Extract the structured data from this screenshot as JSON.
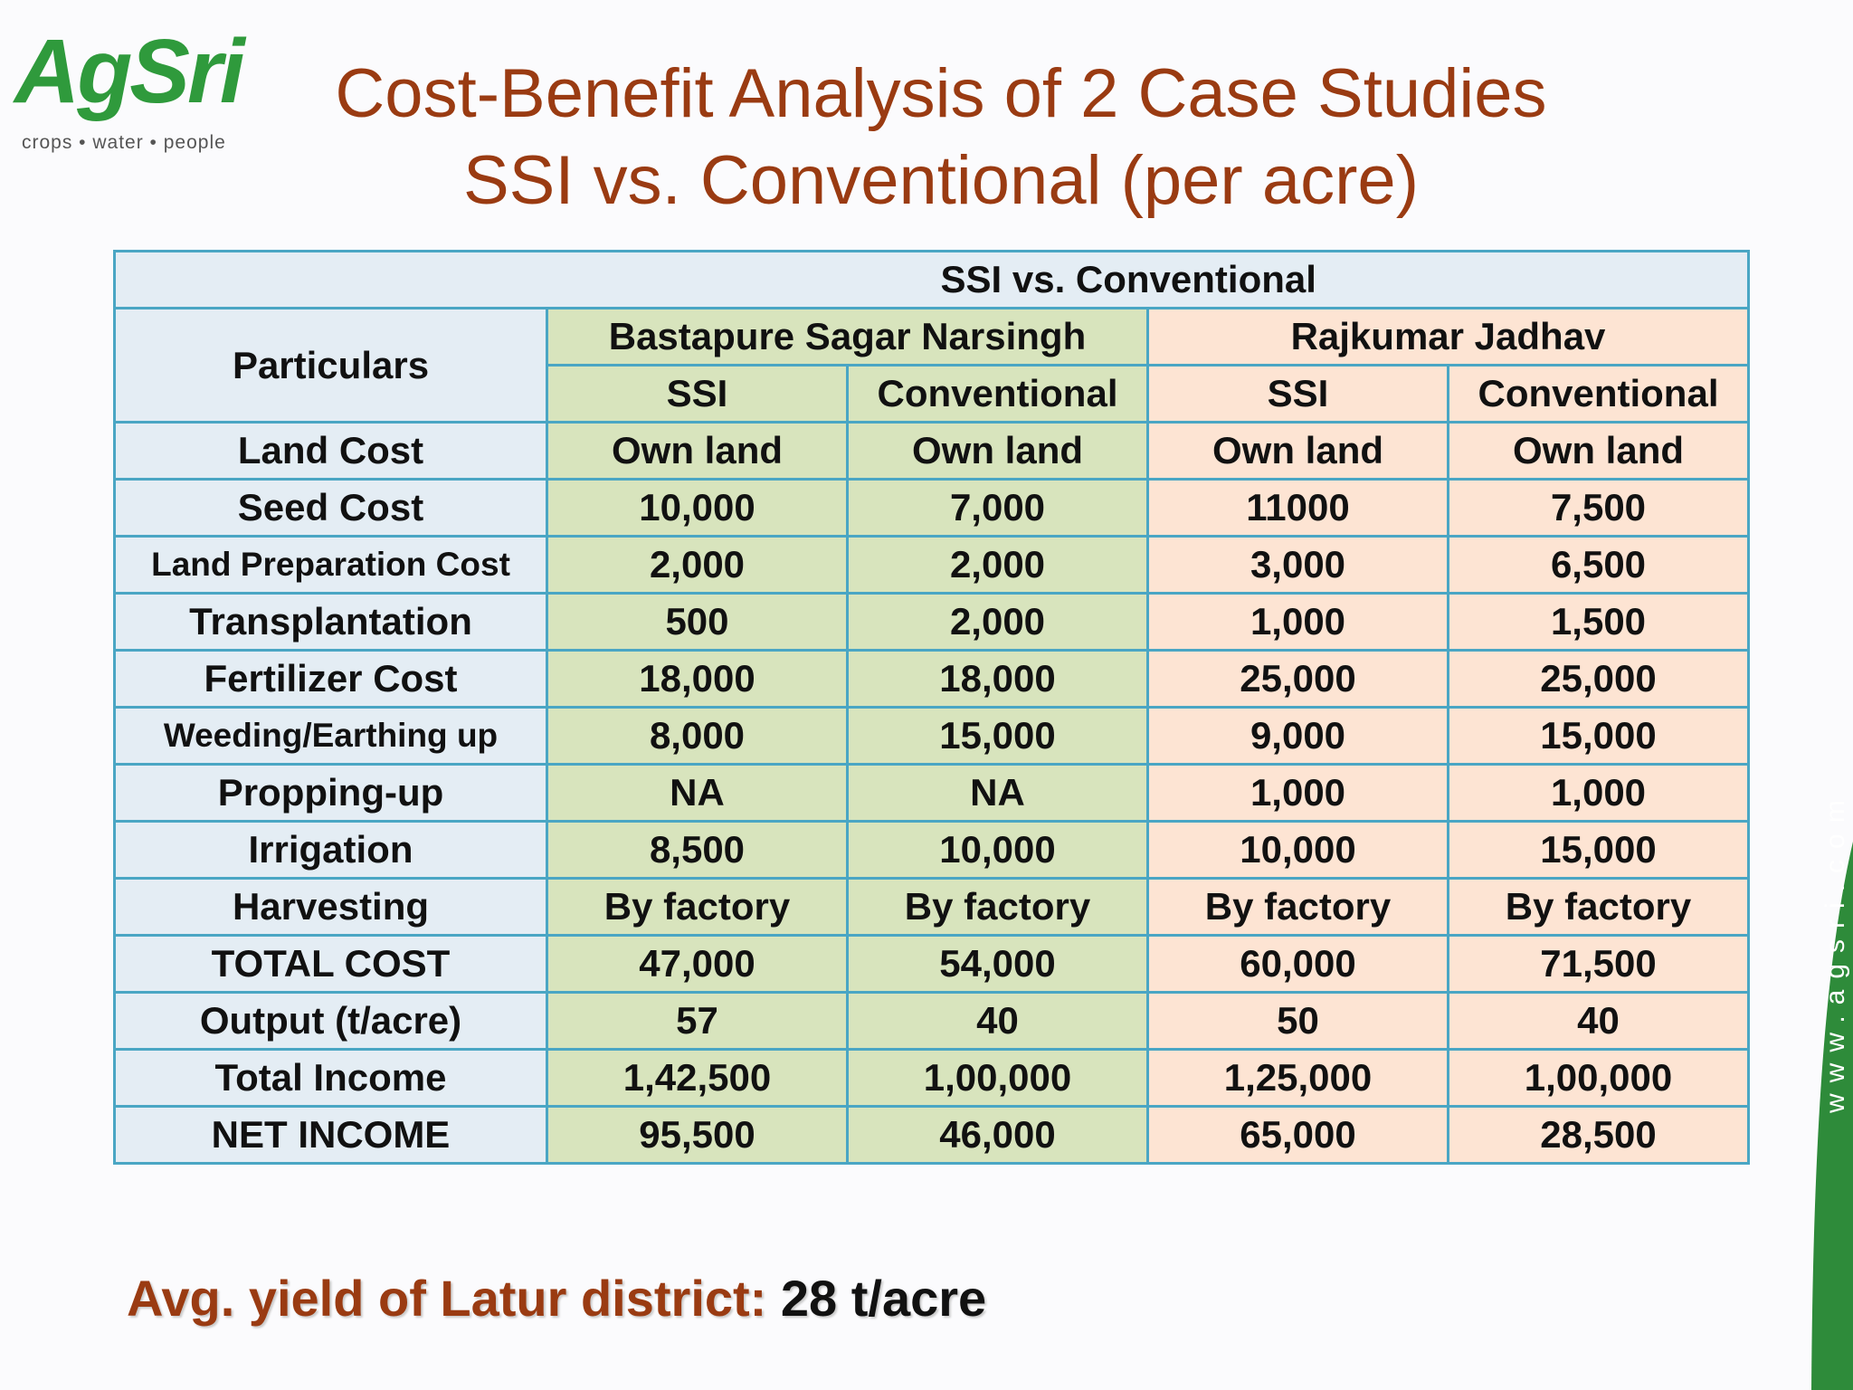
{
  "logo": {
    "text": "AgSri",
    "tagline": "crops • water • people"
  },
  "title": {
    "line1": "Cost-Benefit Analysis of 2 Case Studies",
    "line2": "SSI vs. Conventional (per acre)"
  },
  "table": {
    "top_header": "SSI vs. Conventional",
    "particulars_label": "Particulars",
    "groups": [
      "Bastapure Sagar Narsingh",
      "Rajkumar Jadhav"
    ],
    "subheaders": [
      "SSI",
      "Conventional",
      "SSI",
      "Conventional"
    ],
    "rows": [
      {
        "label": "Land Cost",
        "values": [
          "Own land",
          "Own land",
          "Own land",
          "Own land"
        ]
      },
      {
        "label": "Seed Cost",
        "values": [
          "10,000",
          "7,000",
          "11000",
          "7,500"
        ]
      },
      {
        "label": "Land Preparation Cost",
        "values": [
          "2,000",
          "2,000",
          "3,000",
          "6,500"
        ]
      },
      {
        "label": "Transplantation",
        "values": [
          "500",
          "2,000",
          "1,000",
          "1,500"
        ]
      },
      {
        "label": "Fertilizer Cost",
        "values": [
          "18,000",
          "18,000",
          "25,000",
          "25,000"
        ]
      },
      {
        "label": "Weeding/Earthing up",
        "values": [
          "8,000",
          "15,000",
          "9,000",
          "15,000"
        ]
      },
      {
        "label": "Propping-up",
        "values": [
          "NA",
          "NA",
          "1,000",
          "1,000"
        ]
      },
      {
        "label": "Irrigation",
        "values": [
          "8,500",
          "10,000",
          "10,000",
          "15,000"
        ]
      },
      {
        "label": "Harvesting",
        "values": [
          "By factory",
          "By factory",
          "By factory",
          "By factory"
        ]
      },
      {
        "label": "TOTAL COST",
        "values": [
          "47,000",
          "54,000",
          "60,000",
          "71,500"
        ]
      },
      {
        "label": "Output (t/acre)",
        "values": [
          "57",
          "40",
          "50",
          "40"
        ]
      },
      {
        "label": "Total Income",
        "values": [
          "1,42,500",
          "1,00,000",
          "1,25,000",
          "1,00,000"
        ]
      },
      {
        "label": "NET INCOME",
        "values": [
          "95,500",
          "46,000",
          "65,000",
          "28,500"
        ]
      }
    ]
  },
  "footer": {
    "label": "Avg. yield of Latur district:",
    "value": "28 t/acre"
  },
  "side_url": "www.agsri.com",
  "colors": {
    "title": "#9a3b12",
    "bastapure_fill": "#d8e4bd",
    "rajkumar_fill": "#fde4d3",
    "header_fill": "#e4edf4",
    "border": "#4aa6c4",
    "net_ssi": "#1515e0",
    "net_conventional": "#ee3a14",
    "brand_green": "#2f9a3c"
  }
}
